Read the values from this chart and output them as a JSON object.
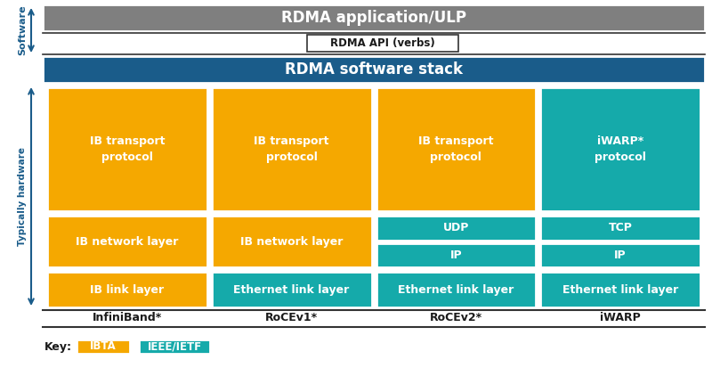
{
  "bg_color": "#ffffff",
  "orange": "#F5A800",
  "teal": "#15AAAA",
  "dark_blue": "#1A5C8A",
  "gray": "#7F7F7F",
  "white": "#ffffff",
  "black": "#1a1a1a",
  "columns": [
    "InfiniBand*",
    "RoCEv1*",
    "RoCEv2*",
    "iWARP"
  ],
  "rdma_app_text": "RDMA application/ULP",
  "rdma_api_text": "RDMA API (verbs)",
  "rdma_stack_text": "RDMA software stack",
  "key_label": "Key:",
  "key_items": [
    {
      "label": "IBTA",
      "color": "orange"
    },
    {
      "label": "IEEE/IETF",
      "color": "teal"
    }
  ],
  "sw_label": "Software",
  "hw_label": "Typically hardware"
}
